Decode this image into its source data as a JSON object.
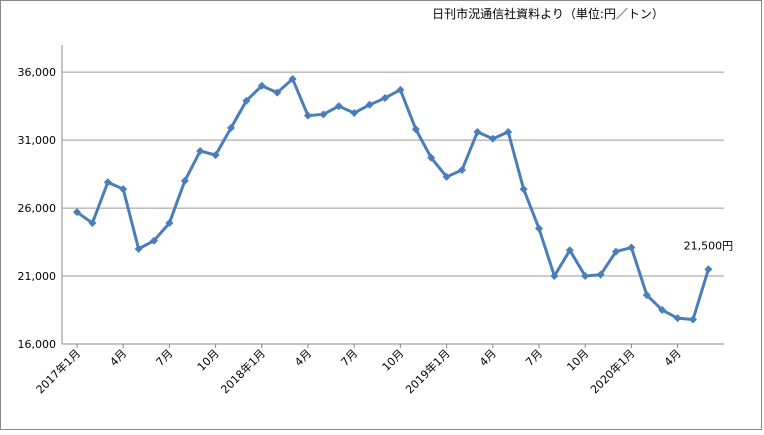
{
  "chart_data": {
    "type": "line",
    "title": "日刊市況通信社資料より（単位:円／トン）",
    "annotation": "21,500円",
    "categories": [
      "2017年1月",
      null,
      null,
      "4月",
      null,
      null,
      "7月",
      null,
      null,
      "10月",
      null,
      null,
      "2018年1月",
      null,
      null,
      "4月",
      null,
      null,
      "7月",
      null,
      null,
      "10月",
      null,
      null,
      "2019年1月",
      null,
      null,
      "4月",
      null,
      null,
      "7月",
      null,
      null,
      "10月",
      null,
      null,
      "2020年1月",
      null,
      null,
      "4月",
      null,
      null
    ],
    "series": [
      {
        "color": "#4a7ebb",
        "values": [
          25700,
          24900,
          27900,
          27400,
          23000,
          23600,
          24900,
          28000,
          30200,
          29900,
          31900,
          33900,
          35000,
          34500,
          35500,
          32800,
          32900,
          33500,
          33000,
          33600,
          34100,
          34700,
          31800,
          29700,
          28300,
          28800,
          31600,
          31100,
          31600,
          27400,
          24500,
          21000,
          22900,
          21000,
          21100,
          22800,
          23100,
          19600,
          18500,
          17900,
          17800,
          21500
        ]
      }
    ],
    "ylim": [
      16000,
      38000
    ],
    "yticks": [
      {
        "value": 16000,
        "label": "16,000"
      },
      {
        "value": 21000,
        "label": "21,000"
      },
      {
        "value": 26000,
        "label": "26,000"
      },
      {
        "value": 31000,
        "label": "31,000"
      },
      {
        "value": 36000,
        "label": "36,000"
      }
    ],
    "grid": true
  }
}
